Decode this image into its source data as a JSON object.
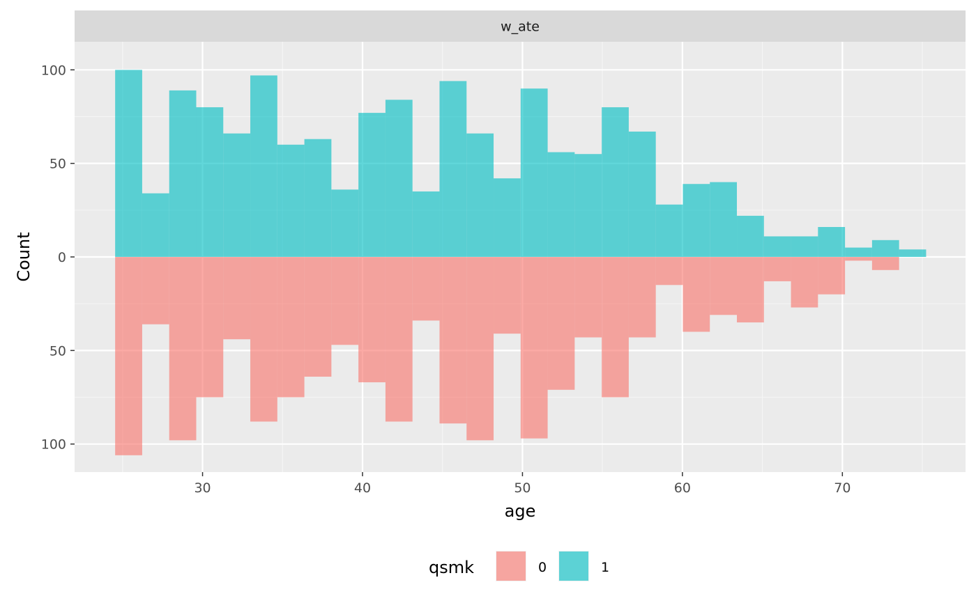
{
  "chart_data": {
    "type": "bar",
    "subtype": "mirrored-histogram",
    "facet_label": "w_ate",
    "xlabel": "age",
    "ylabel": "Count",
    "xlim": [
      22,
      77.7
    ],
    "ylim": [
      -115,
      115
    ],
    "x_ticks": [
      30,
      40,
      50,
      60,
      70
    ],
    "y_ticks": [
      {
        "value": 100,
        "label": "100"
      },
      {
        "value": 50,
        "label": "50"
      },
      {
        "value": 0,
        "label": "0"
      },
      {
        "value": -50,
        "label": "50"
      },
      {
        "value": -100,
        "label": "100"
      }
    ],
    "grid": true,
    "legend_position": "bottom",
    "legend_title": "qsmk",
    "bin_width": 1.69,
    "bin_centers": [
      25.38,
      27.07,
      28.76,
      30.45,
      32.14,
      33.83,
      35.52,
      37.21,
      38.9,
      40.59,
      42.28,
      43.97,
      45.66,
      47.35,
      49.04,
      50.73,
      52.42,
      54.11,
      55.8,
      57.49,
      59.18,
      60.87,
      62.56,
      64.25,
      65.94,
      67.63,
      69.32,
      71.01,
      72.7,
      74.39
    ],
    "series": [
      {
        "name": "0",
        "direction": "down",
        "color": "#F8766D",
        "values": [
          106,
          36,
          98,
          75,
          44,
          88,
          75,
          64,
          47,
          67,
          88,
          34,
          89,
          98,
          41,
          97,
          71,
          43,
          75,
          43,
          15,
          40,
          31,
          35,
          13,
          27,
          20,
          2,
          7,
          0
        ]
      },
      {
        "name": "1",
        "direction": "up",
        "color": "#00BFC4",
        "values": [
          100,
          34,
          89,
          80,
          66,
          97,
          60,
          63,
          36,
          77,
          84,
          35,
          94,
          66,
          42,
          90,
          56,
          55,
          80,
          67,
          28,
          39,
          40,
          22,
          11,
          11,
          16,
          5,
          9,
          4
        ]
      }
    ],
    "fill_alpha": 0.62,
    "colors": {
      "panel_background": "#EBEBEB",
      "strip_background": "#D9D9D9",
      "grid_major": "#FFFFFF",
      "grid_minor": "#F5F5F5",
      "tick_text": "#4D4D4D"
    }
  }
}
